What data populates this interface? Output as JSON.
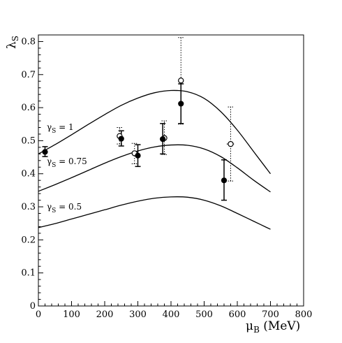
{
  "chart_data": {
    "type": "scatter",
    "title": "",
    "xlabel": "μB (MeV)",
    "ylabel": "λS",
    "xlim": [
      0,
      800
    ],
    "ylim": [
      0,
      0.82
    ],
    "x_ticks": [
      0,
      100,
      200,
      300,
      400,
      500,
      600,
      700,
      800
    ],
    "y_ticks": [
      0,
      0.1,
      0.2,
      0.3,
      0.4,
      0.5,
      0.6,
      0.7,
      0.8
    ],
    "x_tick_labels": [
      "0",
      "100",
      "200",
      "300",
      "400",
      "500",
      "600",
      "700",
      "800"
    ],
    "y_tick_labels": [
      "0",
      "0.1",
      "0.2",
      "0.3",
      "0.4",
      "0.5",
      "0.6",
      "0.7",
      "0.8"
    ],
    "grid": false,
    "series": [
      {
        "name": "γS = 1",
        "kind": "curve",
        "x": [
          0,
          50,
          100,
          150,
          200,
          250,
          300,
          350,
          400,
          450,
          500,
          550,
          600,
          650,
          700
        ],
        "y": [
          0.46,
          0.488,
          0.518,
          0.549,
          0.579,
          0.607,
          0.629,
          0.645,
          0.652,
          0.648,
          0.628,
          0.588,
          0.532,
          0.466,
          0.4
        ]
      },
      {
        "name": "γS = 0.75",
        "kind": "curve",
        "x": [
          0,
          50,
          100,
          150,
          200,
          250,
          300,
          350,
          400,
          450,
          500,
          550,
          600,
          650,
          700
        ],
        "y": [
          0.347,
          0.367,
          0.388,
          0.41,
          0.432,
          0.452,
          0.469,
          0.481,
          0.487,
          0.486,
          0.475,
          0.452,
          0.418,
          0.38,
          0.345
        ]
      },
      {
        "name": "γS = 0.5",
        "kind": "curve",
        "x": [
          0,
          50,
          100,
          150,
          200,
          250,
          300,
          350,
          400,
          450,
          500,
          550,
          600,
          650,
          700
        ],
        "y": [
          0.237,
          0.249,
          0.263,
          0.277,
          0.291,
          0.305,
          0.317,
          0.326,
          0.33,
          0.329,
          0.32,
          0.303,
          0.28,
          0.256,
          0.232
        ]
      },
      {
        "name": "",
        "kind": "points-filled",
        "points": [
          {
            "x": 20,
            "y": 0.466,
            "ylo": 0.452,
            "yhi": 0.482,
            "xerr": 8
          },
          {
            "x": 250,
            "y": 0.506,
            "ylo": 0.484,
            "yhi": 0.53,
            "xerr": 0
          },
          {
            "x": 300,
            "y": 0.455,
            "ylo": 0.422,
            "yhi": 0.488,
            "xerr": 8
          },
          {
            "x": 375,
            "y": 0.505,
            "ylo": 0.46,
            "yhi": 0.552,
            "xerr": 8
          },
          {
            "x": 430,
            "y": 0.612,
            "ylo": 0.552,
            "yhi": 0.672,
            "xerr": 0
          },
          {
            "x": 560,
            "y": 0.38,
            "ylo": 0.32,
            "yhi": 0.442,
            "xerr": 8
          }
        ]
      },
      {
        "name": "",
        "kind": "points-open",
        "points": [
          {
            "x": 245,
            "y": 0.514,
            "ylo": 0.49,
            "yhi": 0.54,
            "xerr": 0
          },
          {
            "x": 290,
            "y": 0.462,
            "ylo": 0.43,
            "yhi": 0.492,
            "xerr": 8
          },
          {
            "x": 380,
            "y": 0.508,
            "ylo": 0.458,
            "yhi": 0.56,
            "xerr": 8
          },
          {
            "x": 430,
            "y": 0.682,
            "ylo": 0.55,
            "yhi": 0.812,
            "xerr": 0
          },
          {
            "x": 580,
            "y": 0.49,
            "ylo": 0.378,
            "yhi": 0.602,
            "xerr": 12
          }
        ]
      }
    ],
    "annotations": [
      {
        "text_main": "γ",
        "text_sub": "S",
        "text_rest": " = 1",
        "for": "γS = 1"
      },
      {
        "text_main": "γ",
        "text_sub": "S",
        "text_rest": " = 0.75",
        "for": "γS = 0.75"
      },
      {
        "text_main": "γ",
        "text_sub": "S",
        "text_rest": " = 0.5",
        "for": "γS = 0.5"
      }
    ],
    "axis_title_parts": {
      "x_main": "μ",
      "x_sub": "B",
      "x_rest": " (MeV)",
      "y_main": "λ",
      "y_sub": "S"
    }
  }
}
